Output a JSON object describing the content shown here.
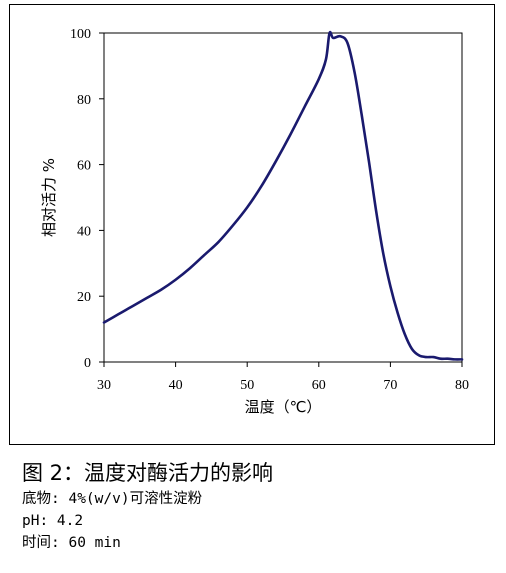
{
  "chart_data": {
    "type": "line",
    "xlabel": "温度（℃）",
    "ylabel": "相对活力 %",
    "xlim": [
      30,
      80
    ],
    "ylim": [
      0,
      100
    ],
    "xticks": [
      "30",
      "40",
      "50",
      "60",
      "70",
      "80"
    ],
    "yticks": [
      "0",
      "20",
      "40",
      "60",
      "80",
      "100"
    ],
    "grid": false,
    "color": "#1a1a6e",
    "series": [
      {
        "x": [
          30,
          32,
          34,
          36,
          38,
          40,
          42,
          44,
          46,
          48,
          50,
          52,
          54,
          56,
          58,
          60,
          61,
          61.5,
          62,
          63,
          64,
          65,
          66,
          67,
          68,
          69,
          70,
          71,
          72,
          73,
          74,
          75,
          76,
          77,
          78,
          79,
          80
        ],
        "values": [
          12,
          14.5,
          17,
          19.5,
          22,
          25,
          28.5,
          32.5,
          36.5,
          41.5,
          47,
          53.5,
          61,
          69,
          77.5,
          86,
          92,
          100,
          98.5,
          99,
          97,
          88,
          75,
          61,
          46,
          33,
          23,
          15,
          8.5,
          4,
          2,
          1.5,
          1.5,
          1,
          1,
          0.8,
          0.8
        ]
      }
    ]
  },
  "caption": {
    "title": "图 2：温度对酶活力的影响",
    "substrate": "底物: 4%(w/v)可溶性淀粉",
    "ph": "pH: 4.2",
    "time": "时间: 60 min"
  }
}
